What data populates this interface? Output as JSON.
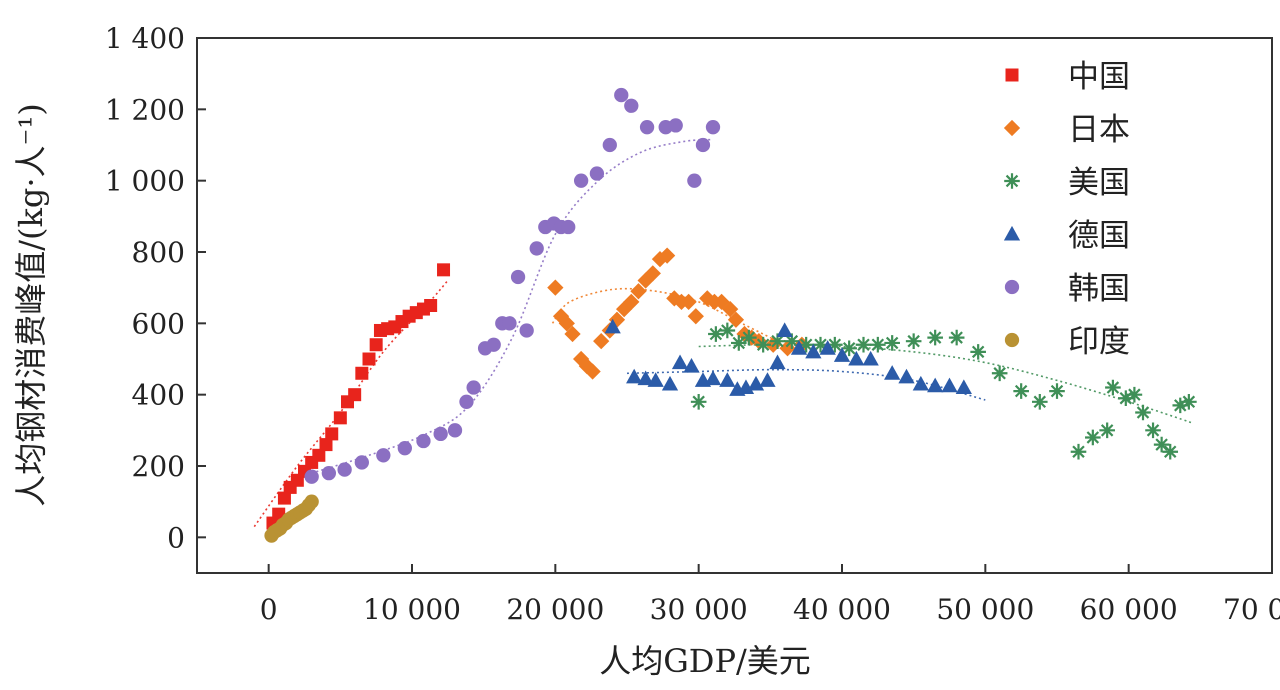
{
  "chart_data": {
    "type": "scatter",
    "title": "",
    "xlabel": "人均GDP/美元",
    "ylabel": "人均钢材消费峰值/(kg·人⁻¹)",
    "xlim": [
      -5000,
      70000
    ],
    "ylim": [
      -100,
      1400
    ],
    "x_ticks": [
      0,
      10000,
      20000,
      30000,
      40000,
      50000,
      60000,
      70000
    ],
    "x_tick_labels": [
      "0",
      "10 000",
      "20 000",
      "30 000",
      "40 000",
      "50 000",
      "60 000",
      "70 000"
    ],
    "y_ticks": [
      0,
      200,
      400,
      600,
      800,
      1000,
      1200,
      1400
    ],
    "y_tick_labels": [
      "0",
      "200",
      "400",
      "600",
      "800",
      "1 000",
      "1 200",
      "1 400"
    ],
    "legend_position": "top-right",
    "series": [
      {
        "name": "中国",
        "marker": "square",
        "color": "#e8241c",
        "points": [
          [
            300,
            40
          ],
          [
            700,
            65
          ],
          [
            1100,
            110
          ],
          [
            1500,
            140
          ],
          [
            2000,
            160
          ],
          [
            2500,
            185
          ],
          [
            3000,
            210
          ],
          [
            3500,
            230
          ],
          [
            4000,
            260
          ],
          [
            4400,
            290
          ],
          [
            5000,
            335
          ],
          [
            5500,
            380
          ],
          [
            6000,
            400
          ],
          [
            6500,
            460
          ],
          [
            7000,
            500
          ],
          [
            7500,
            540
          ],
          [
            7800,
            580
          ],
          [
            8300,
            585
          ],
          [
            8800,
            590
          ],
          [
            9300,
            605
          ],
          [
            9800,
            620
          ],
          [
            10300,
            630
          ],
          [
            10800,
            640
          ],
          [
            11300,
            650
          ],
          [
            12200,
            750
          ]
        ],
        "trend": [
          [
            -1000,
            30
          ],
          [
            2000,
            200
          ],
          [
            5000,
            350
          ],
          [
            8000,
            520
          ],
          [
            11000,
            650
          ],
          [
            12500,
            720
          ]
        ]
      },
      {
        "name": "日本",
        "marker": "diamond",
        "color": "#ee7b22",
        "points": [
          [
            20000,
            700
          ],
          [
            20400,
            620
          ],
          [
            20800,
            600
          ],
          [
            21200,
            570
          ],
          [
            21800,
            500
          ],
          [
            22200,
            480
          ],
          [
            22600,
            465
          ],
          [
            23200,
            550
          ],
          [
            23800,
            580
          ],
          [
            24300,
            610
          ],
          [
            24800,
            640
          ],
          [
            25300,
            660
          ],
          [
            25800,
            690
          ],
          [
            26300,
            720
          ],
          [
            26800,
            740
          ],
          [
            27300,
            780
          ],
          [
            27800,
            790
          ],
          [
            28300,
            670
          ],
          [
            28800,
            660
          ],
          [
            29300,
            660
          ],
          [
            29800,
            620
          ],
          [
            30600,
            670
          ],
          [
            31100,
            660
          ],
          [
            31600,
            660
          ],
          [
            32200,
            640
          ],
          [
            32600,
            610
          ],
          [
            33200,
            570
          ],
          [
            33700,
            560
          ],
          [
            34200,
            550
          ],
          [
            35200,
            540
          ],
          [
            36200,
            530
          ],
          [
            37200,
            540
          ]
        ],
        "trend": [
          [
            19800,
            600
          ],
          [
            21000,
            660
          ],
          [
            24000,
            695
          ],
          [
            27000,
            690
          ],
          [
            30000,
            660
          ],
          [
            33000,
            600
          ],
          [
            36000,
            540
          ],
          [
            37000,
            520
          ]
        ]
      },
      {
        "name": "美国",
        "marker": "asterisk",
        "color": "#3f8f57",
        "points": [
          [
            30000,
            380
          ],
          [
            31200,
            570
          ],
          [
            32000,
            580
          ],
          [
            32800,
            545
          ],
          [
            33500,
            560
          ],
          [
            34500,
            540
          ],
          [
            35500,
            550
          ],
          [
            36500,
            550
          ],
          [
            37500,
            540
          ],
          [
            38500,
            540
          ],
          [
            39500,
            540
          ],
          [
            40500,
            530
          ],
          [
            41500,
            540
          ],
          [
            42500,
            540
          ],
          [
            43500,
            545
          ],
          [
            45000,
            550
          ],
          [
            46500,
            560
          ],
          [
            48000,
            560
          ],
          [
            49500,
            520
          ],
          [
            51000,
            460
          ],
          [
            52500,
            410
          ],
          [
            53800,
            380
          ],
          [
            55000,
            410
          ],
          [
            56500,
            240
          ],
          [
            57500,
            280
          ],
          [
            58500,
            300
          ],
          [
            58900,
            420
          ],
          [
            59800,
            390
          ],
          [
            60400,
            400
          ],
          [
            61000,
            350
          ],
          [
            61700,
            300
          ],
          [
            62300,
            260
          ],
          [
            62900,
            240
          ],
          [
            63600,
            370
          ],
          [
            64200,
            380
          ]
        ],
        "trend": [
          [
            30000,
            535
          ],
          [
            35000,
            540
          ],
          [
            40000,
            535
          ],
          [
            45000,
            520
          ],
          [
            50000,
            490
          ],
          [
            55000,
            440
          ],
          [
            60000,
            380
          ],
          [
            64500,
            320
          ]
        ]
      },
      {
        "name": "德国",
        "marker": "triangle",
        "color": "#2b5ba8",
        "points": [
          [
            24000,
            590
          ],
          [
            25500,
            450
          ],
          [
            26300,
            445
          ],
          [
            27000,
            440
          ],
          [
            28000,
            430
          ],
          [
            28700,
            490
          ],
          [
            29500,
            480
          ],
          [
            30300,
            440
          ],
          [
            31000,
            445
          ],
          [
            32000,
            440
          ],
          [
            32700,
            415
          ],
          [
            33300,
            420
          ],
          [
            34000,
            430
          ],
          [
            34800,
            440
          ],
          [
            35500,
            490
          ],
          [
            36000,
            580
          ],
          [
            37000,
            530
          ],
          [
            38000,
            520
          ],
          [
            39000,
            530
          ],
          [
            40000,
            510
          ],
          [
            41000,
            500
          ],
          [
            42000,
            500
          ],
          [
            43500,
            460
          ],
          [
            44500,
            450
          ],
          [
            45500,
            430
          ],
          [
            46500,
            425
          ],
          [
            47500,
            425
          ],
          [
            48500,
            420
          ]
        ],
        "trend": [
          [
            25000,
            460
          ],
          [
            30000,
            465
          ],
          [
            35000,
            470
          ],
          [
            40000,
            465
          ],
          [
            45000,
            440
          ],
          [
            50000,
            385
          ]
        ]
      },
      {
        "name": "韩国",
        "marker": "circle",
        "color": "#8b6fc2",
        "points": [
          [
            3000,
            170
          ],
          [
            4200,
            180
          ],
          [
            5300,
            190
          ],
          [
            6500,
            210
          ],
          [
            8000,
            230
          ],
          [
            9500,
            250
          ],
          [
            10800,
            270
          ],
          [
            12000,
            290
          ],
          [
            13000,
            300
          ],
          [
            13800,
            380
          ],
          [
            14300,
            420
          ],
          [
            15100,
            530
          ],
          [
            15700,
            540
          ],
          [
            16300,
            600
          ],
          [
            16800,
            600
          ],
          [
            17400,
            730
          ],
          [
            18000,
            580
          ],
          [
            18700,
            810
          ],
          [
            19300,
            870
          ],
          [
            19900,
            880
          ],
          [
            20400,
            870
          ],
          [
            20900,
            870
          ],
          [
            21800,
            1000
          ],
          [
            22900,
            1020
          ],
          [
            23800,
            1100
          ],
          [
            24600,
            1240
          ],
          [
            25300,
            1210
          ],
          [
            26400,
            1150
          ],
          [
            27700,
            1150
          ],
          [
            28400,
            1155
          ],
          [
            29700,
            1000
          ],
          [
            30300,
            1100
          ],
          [
            31000,
            1150
          ]
        ],
        "trend": [
          [
            3000,
            180
          ],
          [
            7000,
            230
          ],
          [
            11000,
            290
          ],
          [
            14000,
            370
          ],
          [
            17000,
            560
          ],
          [
            20000,
            850
          ],
          [
            23000,
            1000
          ],
          [
            26000,
            1080
          ],
          [
            29000,
            1110
          ],
          [
            31000,
            1115
          ]
        ]
      },
      {
        "name": "印度",
        "marker": "circle",
        "color": "#b99233",
        "points": [
          [
            200,
            5
          ],
          [
            400,
            15
          ],
          [
            600,
            20
          ],
          [
            800,
            25
          ],
          [
            1000,
            35
          ],
          [
            1200,
            40
          ],
          [
            1400,
            50
          ],
          [
            1600,
            55
          ],
          [
            1800,
            60
          ],
          [
            2000,
            65
          ],
          [
            2200,
            70
          ],
          [
            2400,
            75
          ],
          [
            2600,
            80
          ],
          [
            2800,
            90
          ],
          [
            3000,
            100
          ]
        ],
        "trend": []
      }
    ]
  }
}
